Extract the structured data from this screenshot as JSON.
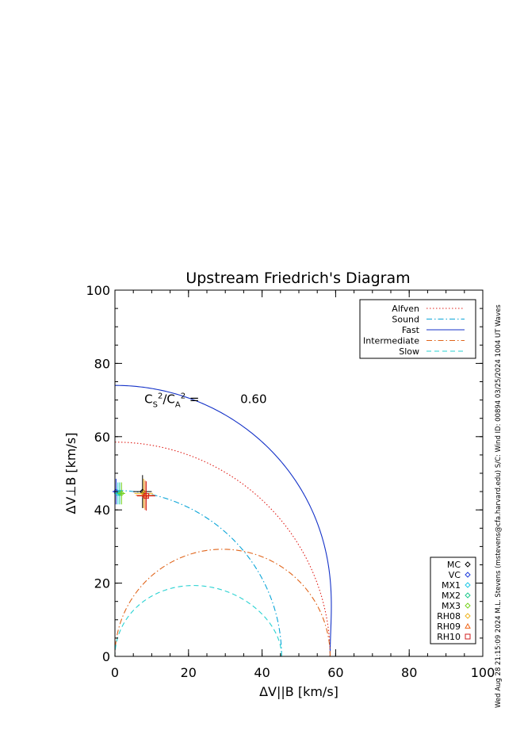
{
  "chart_data": {
    "type": "line",
    "title": "Upstream Friedrich's Diagram",
    "xlabel": "ΔV||B [km/s]",
    "ylabel": "ΔV⊥B [km/s]",
    "xlim": [
      0,
      100
    ],
    "ylim": [
      0,
      100
    ],
    "xticks": [
      0,
      20,
      40,
      60,
      80,
      100
    ],
    "yticks": [
      0,
      20,
      40,
      60,
      80,
      100
    ],
    "grid": false,
    "legend_position": "top-right",
    "annotation": {
      "label": "C_S^2/C_A^2 =",
      "label_parts": [
        "C",
        "S",
        "2",
        "/C",
        "A",
        "2",
        " ="
      ],
      "value": "0.60",
      "at": [
        8,
        73
      ]
    },
    "curves": [
      {
        "name": "Alfven",
        "style": "dotted",
        "color": "#e0201a",
        "kind": "alfven",
        "vA": 58.5
      },
      {
        "name": "Sound",
        "style": "dashdot",
        "color": "#0aa5d8",
        "kind": "sound",
        "cs": 45.3
      },
      {
        "name": "Fast",
        "style": "solid",
        "color": "#1432c8",
        "kind": "fast",
        "vA": 58.5,
        "cs": 45.3
      },
      {
        "name": "Intermediate",
        "style": "dashdot",
        "color": "#e0641a",
        "kind": "intermediate",
        "vA": 58.5
      },
      {
        "name": "Slow",
        "style": "dashed",
        "color": "#28d2d2",
        "kind": "slow",
        "vA": 58.5,
        "cs": 45.3
      }
    ],
    "points": [
      {
        "name": "MC",
        "symbol": "diamond",
        "color": "#000000",
        "x": 7.5,
        "y": 45,
        "xerr": 2.5,
        "yerr": 4.5
      },
      {
        "name": "VC",
        "symbol": "diamond",
        "color": "#1e3cdc",
        "x": 0.3,
        "y": 45,
        "xerr": 1.0,
        "yerr": 3.5
      },
      {
        "name": "MX1",
        "symbol": "diamond",
        "color": "#1ec8e6",
        "x": 0.8,
        "y": 44.5,
        "xerr": 1.0,
        "yerr": 3.0
      },
      {
        "name": "MX2",
        "symbol": "diamond",
        "color": "#1ec88c",
        "x": 1.3,
        "y": 44.5,
        "xerr": 1.0,
        "yerr": 3.0
      },
      {
        "name": "MX3",
        "symbol": "diamond",
        "color": "#78d21e",
        "x": 1.8,
        "y": 44.5,
        "xerr": 1.0,
        "yerr": 3.0
      },
      {
        "name": "RH08",
        "symbol": "diamond",
        "color": "#f0b41e",
        "x": 7.8,
        "y": 44.5,
        "xerr": 2.5,
        "yerr": 4.0
      },
      {
        "name": "RH09",
        "symbol": "triangle",
        "color": "#f06414",
        "x": 8.2,
        "y": 44,
        "xerr": 2.5,
        "yerr": 4.0
      },
      {
        "name": "RH10",
        "symbol": "square",
        "color": "#d21e1e",
        "x": 8.5,
        "y": 43.8,
        "xerr": 2.5,
        "yerr": 4.0
      }
    ],
    "side_text": "Wed Aug 28 21:15:09 2024  M.L. Stevens (mstevens@cfa.harvard.edu)  S/C: Wind ID: 00894 03/25/2024  1004 UT Waves"
  }
}
